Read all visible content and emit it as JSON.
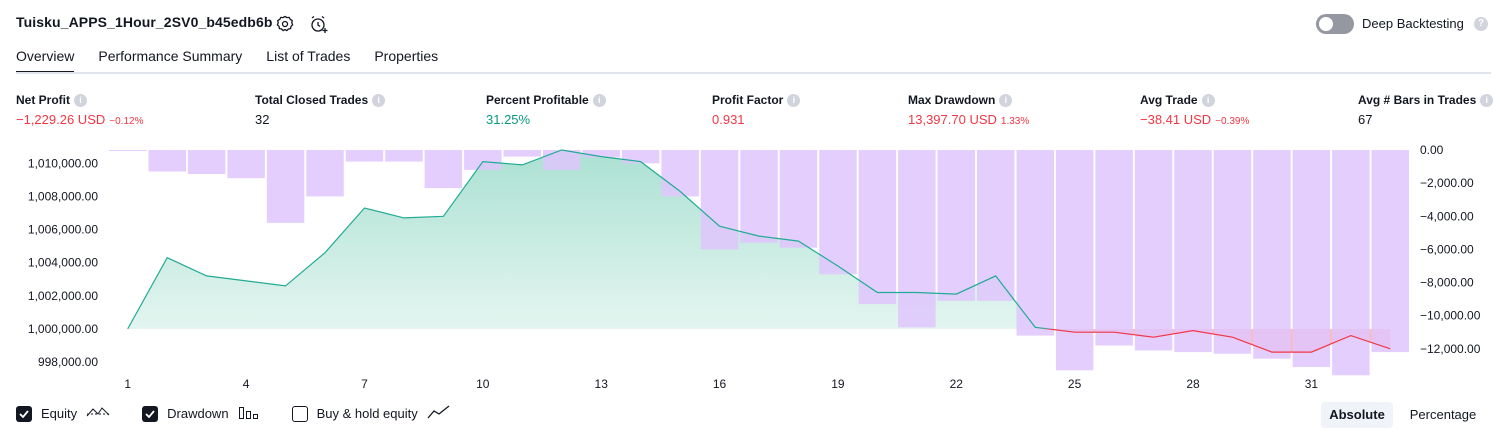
{
  "header": {
    "title": "Tuisku_APPS_1Hour_2SV0_b45edb6b",
    "deep_backtesting_label": "Deep Backtesting",
    "deep_backtesting_on": false
  },
  "tabs": [
    "Overview",
    "Performance Summary",
    "List of Trades",
    "Properties"
  ],
  "active_tab": "Overview",
  "metrics": [
    {
      "label": "Net Profit",
      "value": "−1,229.26 USD",
      "sub": "−0.12%",
      "color": "red"
    },
    {
      "label": "Total Closed Trades",
      "value": "32",
      "sub": "",
      "color": "dark"
    },
    {
      "label": "Percent Profitable",
      "value": "31.25%",
      "sub": "",
      "color": "green"
    },
    {
      "label": "Profit Factor",
      "value": "0.931",
      "sub": "",
      "color": "red"
    },
    {
      "label": "Max Drawdown",
      "value": "13,397.70 USD",
      "sub": "1.33%",
      "color": "red"
    },
    {
      "label": "Avg Trade",
      "value": "−38.41 USD",
      "sub": "−0.39%",
      "color": "red"
    },
    {
      "label": "Avg # Bars in Trades",
      "value": "67",
      "sub": "",
      "color": "dark"
    }
  ],
  "legend": {
    "equity_label": "Equity",
    "drawdown_label": "Drawdown",
    "buyhold_label": "Buy & hold equity",
    "equity_checked": true,
    "drawdown_checked": true,
    "buyhold_checked": false
  },
  "view_buttons": {
    "absolute": "Absolute",
    "percentage": "Percentage",
    "selected": "Absolute"
  },
  "colors": {
    "equity_line": "#22ab94",
    "equity_fill": "#b8e6da",
    "loss_line": "#f23645",
    "loss_fill": "#fbd3d6",
    "drawdown_bar": "#dfc5fd"
  },
  "chart_data": {
    "type": "area",
    "x_ticks": [
      "1",
      "4",
      "7",
      "10",
      "13",
      "16",
      "19",
      "22",
      "25",
      "28",
      "31"
    ],
    "left_axis_ticks": [
      "1,010,000.00",
      "1,008,000.00",
      "1,006,000.00",
      "1,004,000.00",
      "1,002,000.00",
      "1,000,000.00",
      "998,000.00"
    ],
    "right_axis_ticks": [
      "0.00",
      "−2,000.00",
      "−4,000.00",
      "−6,000.00",
      "−8,000.00",
      "−10,000.00",
      "−12,000.00"
    ],
    "ylim_left": [
      997400,
      1010800
    ],
    "ylim_right": [
      -13400,
      0
    ],
    "baseline": 1000000,
    "series": [
      {
        "name": "Equity",
        "x": [
          1,
          2,
          3,
          4,
          5,
          6,
          7,
          8,
          9,
          10,
          11,
          12,
          13,
          14,
          15,
          16,
          17,
          18,
          19,
          20,
          21,
          22,
          23,
          24,
          25,
          26,
          27,
          28,
          29,
          30,
          31,
          32,
          33
        ],
        "values": [
          1000000,
          1004300,
          1003200,
          1002900,
          1002600,
          1004600,
          1007300,
          1006700,
          1006800,
          1010100,
          1009900,
          1010800,
          1010400,
          1010100,
          1008300,
          1006200,
          1005600,
          1005300,
          1003800,
          1002200,
          1002200,
          1002100,
          1003200,
          1000100,
          999800,
          999800,
          999500,
          999900,
          999500,
          998600,
          998600,
          999600,
          998800
        ]
      },
      {
        "name": "Drawdown",
        "x": [
          1,
          2,
          3,
          4,
          5,
          6,
          7,
          8,
          9,
          10,
          11,
          12,
          13,
          14,
          15,
          16,
          17,
          18,
          19,
          20,
          21,
          22,
          23,
          24,
          25,
          26,
          27,
          28,
          29,
          30,
          31,
          32,
          33
        ],
        "values": [
          -50,
          -1300,
          -1450,
          -1700,
          -4400,
          -2800,
          -700,
          -700,
          -2300,
          -1200,
          -400,
          -1200,
          -450,
          -800,
          -2800,
          -6000,
          -5600,
          -5900,
          -7500,
          -9300,
          -10700,
          -9100,
          -9100,
          -11200,
          -13300,
          -11800,
          -12100,
          -12200,
          -12300,
          -12600,
          -13100,
          -13600,
          -12200
        ]
      }
    ]
  }
}
